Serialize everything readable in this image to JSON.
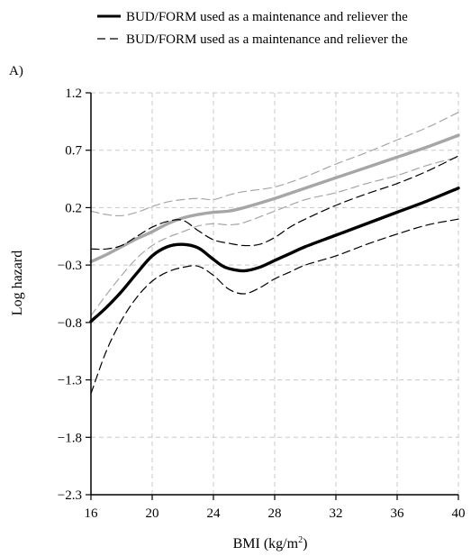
{
  "chart_data": {
    "type": "line",
    "panel_label": "A)",
    "xlabel_main": "BMI (kg/m",
    "xlabel_sup": "2",
    "xlabel_close": ")",
    "ylabel": "Log hazard",
    "xlim": [
      16,
      40
    ],
    "ylim": [
      -2.3,
      1.2
    ],
    "x_ticks": [
      16,
      20,
      24,
      28,
      32,
      36,
      40
    ],
    "y_ticks": [
      -2.3,
      -1.8,
      -1.3,
      -0.8,
      -0.3,
      0.2,
      0.7,
      1.2
    ],
    "x_tick_labels": [
      "16",
      "20",
      "24",
      "28",
      "32",
      "36",
      "40"
    ],
    "y_tick_labels": [
      "−2.3",
      "−1.8",
      "−1.3",
      "−0.8",
      "−0.3",
      "0.2",
      "0.7",
      "1.2"
    ],
    "grid": true,
    "legend": [
      {
        "label": "BUD/FORM used as a maintenance and reliever the",
        "style": "solid"
      },
      {
        "label": "BUD/FORM used as a maintenance and reliever the",
        "style": "dashed"
      }
    ],
    "series": [
      {
        "color": "#000000",
        "style": "solid",
        "role": "estimate",
        "x": [
          16,
          17,
          18,
          19,
          20,
          21,
          22,
          23,
          23.8,
          24.5,
          25,
          26,
          27,
          28,
          29,
          30,
          32,
          34,
          36,
          38,
          40
        ],
        "y": [
          -0.79,
          -0.67,
          -0.53,
          -0.37,
          -0.22,
          -0.14,
          -0.12,
          -0.15,
          -0.23,
          -0.3,
          -0.33,
          -0.35,
          -0.32,
          -0.26,
          -0.2,
          -0.14,
          -0.04,
          0.06,
          0.16,
          0.26,
          0.37
        ]
      },
      {
        "color": "#000000",
        "style": "dashed",
        "role": "upper-ci",
        "x": [
          16,
          17,
          18,
          19,
          20,
          21,
          22,
          23,
          24,
          25,
          26,
          27,
          28,
          29,
          30,
          32,
          34,
          36,
          38,
          40
        ],
        "y": [
          -0.16,
          -0.16,
          -0.13,
          -0.05,
          0.03,
          0.08,
          0.09,
          0.0,
          -0.08,
          -0.11,
          -0.13,
          -0.12,
          -0.06,
          0.03,
          0.1,
          0.22,
          0.32,
          0.41,
          0.52,
          0.65
        ]
      },
      {
        "color": "#000000",
        "style": "dashed",
        "role": "lower-ci",
        "x": [
          16,
          17,
          18,
          19,
          20,
          21,
          22,
          23,
          24,
          25,
          26,
          27,
          28,
          29,
          30,
          32,
          34,
          36,
          38,
          40
        ],
        "y": [
          -1.42,
          -1.05,
          -0.78,
          -0.58,
          -0.44,
          -0.36,
          -0.32,
          -0.31,
          -0.39,
          -0.51,
          -0.55,
          -0.5,
          -0.42,
          -0.36,
          -0.3,
          -0.22,
          -0.12,
          -0.03,
          0.05,
          0.1
        ]
      },
      {
        "color": "#a6a6a6",
        "style": "solid",
        "role": "estimate",
        "x": [
          16,
          17,
          18,
          19,
          20,
          21,
          22,
          23,
          24,
          25,
          26,
          28,
          30,
          32,
          34,
          36,
          38,
          40
        ],
        "y": [
          -0.27,
          -0.21,
          -0.14,
          -0.07,
          -0.01,
          0.06,
          0.11,
          0.14,
          0.16,
          0.17,
          0.2,
          0.28,
          0.37,
          0.46,
          0.55,
          0.64,
          0.73,
          0.83
        ]
      },
      {
        "color": "#a6a6a6",
        "style": "dashed",
        "role": "upper-ci",
        "x": [
          16,
          17,
          18,
          19,
          20,
          21,
          22,
          23,
          24,
          25,
          26,
          28,
          30,
          32,
          34,
          36,
          38,
          40
        ],
        "y": [
          0.17,
          0.14,
          0.13,
          0.16,
          0.21,
          0.25,
          0.27,
          0.28,
          0.27,
          0.31,
          0.34,
          0.38,
          0.47,
          0.58,
          0.68,
          0.79,
          0.9,
          1.03
        ]
      },
      {
        "color": "#a6a6a6",
        "style": "dashed",
        "role": "lower-ci",
        "x": [
          16,
          17,
          18,
          19,
          20,
          21,
          22,
          23,
          24,
          25,
          26,
          28,
          30,
          32,
          34,
          36,
          38,
          40
        ],
        "y": [
          -0.74,
          -0.56,
          -0.39,
          -0.24,
          -0.13,
          -0.06,
          -0.01,
          0.04,
          0.06,
          0.05,
          0.07,
          0.17,
          0.27,
          0.33,
          0.41,
          0.48,
          0.57,
          0.64
        ]
      }
    ]
  }
}
